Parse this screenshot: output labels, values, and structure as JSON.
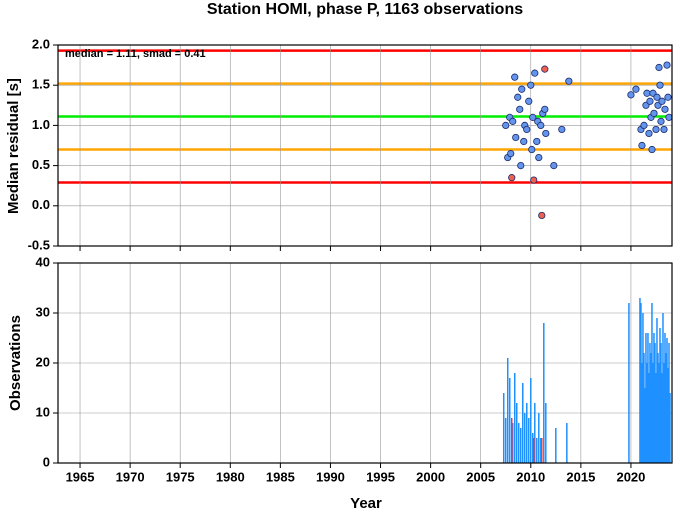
{
  "chart_data": [
    {
      "type": "scatter",
      "title": "Station HOMI, phase P, 1163 observations",
      "y_label": "Median residual [s]",
      "annotation": "median = 1.11, smad = 0.41",
      "xlim": [
        1962.8,
        2024.1
      ],
      "ylim": [
        -0.5,
        2.0
      ],
      "xticks": [
        1965,
        1970,
        1975,
        1980,
        1985,
        1990,
        1995,
        2000,
        2005,
        2010,
        2015,
        2020
      ],
      "yticks": [
        -0.5,
        {
          "value": 0,
          "label": "0.0"
        },
        0.5,
        {
          "value": 1,
          "label": "1.0"
        },
        1.5,
        {
          "value": 2,
          "label": "2.0"
        }
      ],
      "grid": true,
      "hlines": [
        {
          "value": 1.93,
          "color": "#ff0000"
        },
        {
          "value": 0.29,
          "color": "#ff0000"
        },
        {
          "value": 1.52,
          "color": "#ffa500"
        },
        {
          "value": 0.7,
          "color": "#ffa500"
        },
        {
          "value": 1.11,
          "color": "#00ee00"
        }
      ],
      "series": [
        {
          "color": "#6495ed",
          "x": [
            2007.5,
            2007.7,
            2007.9,
            2008.0,
            2008.2,
            2008.4,
            2008.5,
            2008.7,
            2008.9,
            2009.0,
            2009.1,
            2009.3,
            2009.4,
            2009.6,
            2009.8,
            2010.0,
            2010.1,
            2010.2,
            2010.4,
            2010.6,
            2010.7,
            2010.8,
            2011.0,
            2011.2,
            2011.4,
            2011.5,
            2012.3,
            2013.1,
            2013.8,
            2020.0,
            2020.5,
            2021.0,
            2021.1,
            2021.3,
            2021.5,
            2021.6,
            2021.8,
            2021.9,
            2022.0,
            2022.1,
            2022.2,
            2022.3,
            2022.5,
            2022.6,
            2022.7,
            2022.8,
            2022.9,
            2023.0,
            2023.1,
            2023.3,
            2023.4,
            2023.6,
            2023.7,
            2023.8
          ],
          "values": [
            1.0,
            0.6,
            1.1,
            0.65,
            1.05,
            1.6,
            0.85,
            1.35,
            1.2,
            0.5,
            1.45,
            0.8,
            1.0,
            0.95,
            1.3,
            1.5,
            0.7,
            1.1,
            1.65,
            0.8,
            1.05,
            0.6,
            1.0,
            1.15,
            1.2,
            0.9,
            0.5,
            0.95,
            1.55,
            1.38,
            1.45,
            0.95,
            0.75,
            1.0,
            1.25,
            1.4,
            0.9,
            1.3,
            1.1,
            0.7,
            1.4,
            1.15,
            0.95,
            1.35,
            1.25,
            1.72,
            1.5,
            1.05,
            1.3,
            0.95,
            1.2,
            1.75,
            1.35,
            1.1
          ]
        },
        {
          "color": "#f06050",
          "x": [
            2008.1,
            2010.3,
            2011.1,
            2011.4
          ],
          "values": [
            0.35,
            0.32,
            -0.12,
            1.7
          ]
        }
      ]
    },
    {
      "type": "bar",
      "x_label": "Year",
      "y_label": "Observations",
      "xlim": [
        1962.8,
        2024.1
      ],
      "ylim": [
        0,
        40
      ],
      "xticks": [
        1965,
        1970,
        1975,
        1980,
        1985,
        1990,
        1995,
        2000,
        2005,
        2010,
        2015,
        2020
      ],
      "yticks": [
        0,
        10,
        20,
        30,
        40
      ],
      "grid": true,
      "series": [
        {
          "color": "#1e90ff",
          "x": [
            2007.3,
            2007.5,
            2007.7,
            2007.9,
            2008.2,
            2008.4,
            2008.6,
            2008.8,
            2009.0,
            2009.2,
            2009.4,
            2009.6,
            2009.8,
            2010.0,
            2010.2,
            2010.4,
            2010.6,
            2010.8,
            2011.0,
            2011.3,
            2011.5,
            2012.5,
            2013.6,
            2019.8,
            2020.9,
            2021.0,
            2021.1,
            2021.2,
            2021.3,
            2021.4,
            2021.5,
            2021.6,
            2021.7,
            2021.8,
            2021.9,
            2022.0,
            2022.1,
            2022.2,
            2022.3,
            2022.4,
            2022.5,
            2022.6,
            2022.7,
            2022.8,
            2022.9,
            2023.0,
            2023.1,
            2023.2,
            2023.3,
            2023.4,
            2023.5,
            2023.6,
            2023.7,
            2023.8,
            2023.9
          ],
          "values": [
            14,
            9,
            21,
            17,
            8,
            18,
            12,
            8,
            7,
            16,
            10,
            12,
            9,
            17,
            6,
            12,
            5,
            10,
            5,
            28,
            12,
            7,
            8,
            32,
            33,
            32,
            20,
            30,
            22,
            15,
            26,
            20,
            26,
            18,
            24,
            22,
            32,
            20,
            26,
            24,
            18,
            29,
            22,
            20,
            27,
            24,
            18,
            30,
            20,
            26,
            22,
            25,
            19,
            24,
            14
          ]
        },
        {
          "color": "#ff3030",
          "x": [
            2008.1,
            2010.3,
            2011.1
          ],
          "values": [
            9,
            5,
            5
          ]
        }
      ]
    }
  ]
}
